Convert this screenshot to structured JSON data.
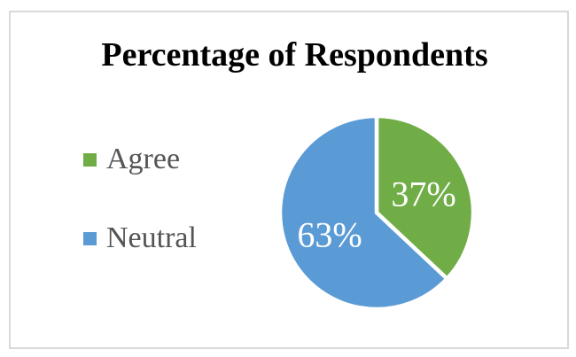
{
  "window": {
    "background": "#ffffff",
    "frame_border_color": "#d9d9d9"
  },
  "chart_data": {
    "type": "pie",
    "title": "Percentage of Respondents",
    "title_color": "#000000",
    "categories": [
      "Agree",
      "Neutral"
    ],
    "values": [
      37,
      63
    ],
    "data_labels": [
      "37%",
      "63%"
    ],
    "colors": [
      "#70ad47",
      "#5b9bd5"
    ],
    "data_label_color": "#ffffff",
    "legend_position": "left",
    "legend_text_color": "#555555",
    "start_angle": "top",
    "direction": "clockwise",
    "slice_separator_color": "#ffffff"
  }
}
